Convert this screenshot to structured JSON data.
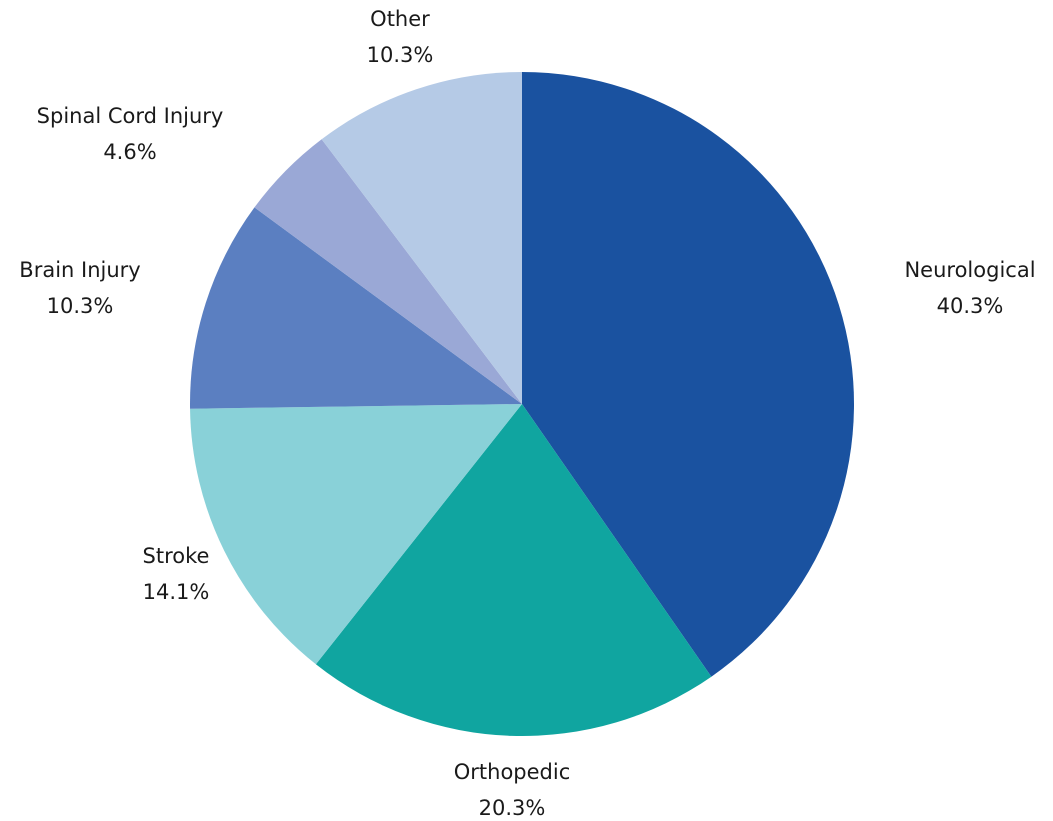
{
  "chart_data": {
    "type": "pie",
    "categories": [
      "Neurological",
      "Orthopedic",
      "Stroke",
      "Brain Injury",
      "Spinal Cord Injury",
      "Other"
    ],
    "values": [
      40.3,
      20.3,
      14.1,
      10.3,
      4.6,
      10.3
    ],
    "value_labels": [
      "40.3%",
      "20.3%",
      "14.1%",
      "10.3%",
      "4.6%",
      "10.3%"
    ],
    "colors": [
      "#1a52a0",
      "#10a5a0",
      "#89d1d8",
      "#5b7fc1",
      "#9aa8d6",
      "#b5cae6"
    ]
  }
}
